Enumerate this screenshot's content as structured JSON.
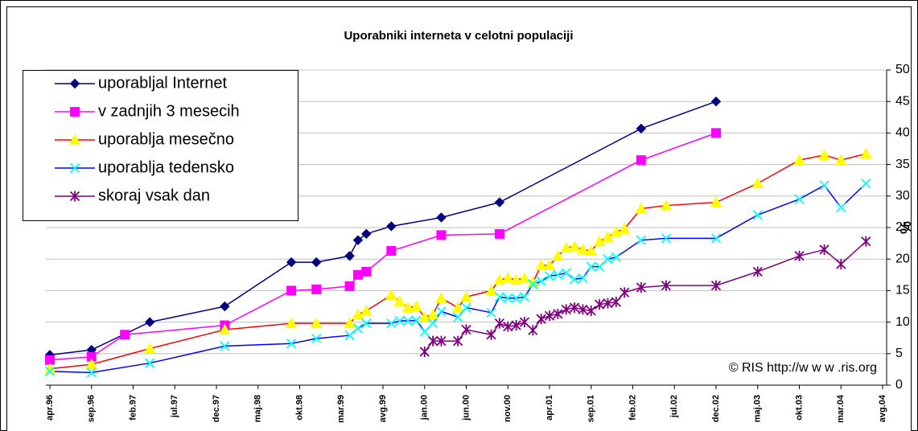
{
  "chart_data": {
    "type": "line",
    "title": "Uporabniki interneta v celotni populaciji",
    "y_label": "%",
    "annotation": "© RIS http://w w w .ris.org",
    "xlim": [
      "1996-04",
      "2004-08"
    ],
    "xticks": [
      {
        "value": "1996-04",
        "label": "apr.96"
      },
      {
        "value": "1996-09",
        "label": "sep.96"
      },
      {
        "value": "1997-02",
        "label": "feb.97"
      },
      {
        "value": "1997-07",
        "label": "jul.97"
      },
      {
        "value": "1997-12",
        "label": "dec.97"
      },
      {
        "value": "1998-05",
        "label": "maj.98"
      },
      {
        "value": "1998-10",
        "label": "okt.98"
      },
      {
        "value": "1999-03",
        "label": "mar.99"
      },
      {
        "value": "1999-08",
        "label": "avg.99"
      },
      {
        "value": "2000-01",
        "label": "jan.00"
      },
      {
        "value": "2000-06",
        "label": "jun.00"
      },
      {
        "value": "2000-11",
        "label": "nov.00"
      },
      {
        "value": "2001-04",
        "label": "apr.01"
      },
      {
        "value": "2001-09",
        "label": "sep.01"
      },
      {
        "value": "2002-02",
        "label": "feb.02"
      },
      {
        "value": "2002-07",
        "label": "jul.02"
      },
      {
        "value": "2002-12",
        "label": "dec.02"
      },
      {
        "value": "2003-05",
        "label": "maj.03"
      },
      {
        "value": "2003-10",
        "label": "okt.03"
      },
      {
        "value": "2004-03",
        "label": "mar.04"
      },
      {
        "value": "2004-08",
        "label": "avg.04"
      }
    ],
    "ylim": [
      0,
      50
    ],
    "yticks": [
      0,
      5,
      10,
      15,
      20,
      25,
      30,
      35,
      40,
      45,
      50
    ],
    "y_axis_side": "right",
    "grid": true,
    "legend": "top-left",
    "series": [
      {
        "name": "uporabljal Internet",
        "color": "#000080",
        "marker": "diamond",
        "marker_color": "#000080",
        "x": [
          "1996-04",
          "1996-09",
          "1997-04",
          "1998-01",
          "1998-09",
          "1998-12",
          "1999-04",
          "1999-05",
          "1999-06",
          "1999-09",
          "2000-03",
          "2000-10",
          "2002-03",
          "2002-12"
        ],
        "values": [
          4.8,
          5.6,
          10.0,
          12.5,
          19.5,
          19.5,
          20.5,
          23.0,
          24.0,
          25.2,
          26.6,
          29.0,
          40.7,
          45.0
        ]
      },
      {
        "name": "v zadnjih 3 mesecih",
        "color": "#ff00ff",
        "marker": "square",
        "marker_color": "#ff00ff",
        "x": [
          "1996-04",
          "1996-09",
          "1997-01",
          "1998-01",
          "1998-09",
          "1998-12",
          "1999-04",
          "1999-05",
          "1999-06",
          "1999-09",
          "2000-03",
          "2000-10",
          "2002-03",
          "2002-12"
        ],
        "values": [
          4.0,
          4.5,
          8.0,
          9.5,
          15.0,
          15.2,
          15.7,
          17.5,
          18.0,
          21.3,
          23.8,
          24.0,
          35.7,
          40.0
        ]
      },
      {
        "name": "uporablja mesečno",
        "color": "#ff0000",
        "marker": "triangle",
        "marker_color": "#ffff00",
        "x": [
          "1996-04",
          "1996-09",
          "1997-04",
          "1998-01",
          "1998-09",
          "1998-12",
          "1999-04",
          "1999-05",
          "1999-06",
          "1999-09",
          "1999-10",
          "1999-11",
          "1999-12",
          "2000-01",
          "2000-02",
          "2000-03",
          "2000-05",
          "2000-06",
          "2000-09",
          "2000-10",
          "2000-11",
          "2000-12",
          "2001-01",
          "2001-02",
          "2001-03",
          "2001-04",
          "2001-05",
          "2001-06",
          "2001-07",
          "2001-08",
          "2001-09",
          "2001-10",
          "2001-11",
          "2001-12",
          "2002-01",
          "2002-03",
          "2002-06",
          "2002-12",
          "2003-05",
          "2003-10",
          "2004-01",
          "2004-03",
          "2004-06"
        ],
        "values": [
          2.6,
          3.3,
          5.8,
          8.8,
          9.8,
          9.8,
          9.8,
          11.2,
          11.8,
          14.3,
          13.3,
          12.3,
          12.5,
          10.8,
          11.2,
          13.8,
          12.3,
          14.0,
          15.0,
          16.7,
          17.0,
          16.7,
          17.0,
          16.3,
          19.0,
          19.0,
          20.5,
          21.8,
          22.0,
          21.5,
          21.3,
          22.8,
          23.5,
          24.3,
          24.8,
          28.0,
          28.5,
          29.0,
          32.0,
          35.7,
          36.5,
          35.7,
          36.7
        ]
      },
      {
        "name": "uporablja tedensko",
        "color": "#0000ff",
        "marker": "x",
        "marker_color": "#00ffff",
        "x": [
          "1996-04",
          "1996-09",
          "1997-04",
          "1998-01",
          "1998-09",
          "1998-12",
          "1999-04",
          "1999-05",
          "1999-06",
          "1999-09",
          "1999-10",
          "1999-11",
          "1999-12",
          "2000-01",
          "2000-02",
          "2000-03",
          "2000-05",
          "2000-06",
          "2000-09",
          "2000-10",
          "2000-11",
          "2000-12",
          "2001-01",
          "2001-02",
          "2001-03",
          "2001-04",
          "2001-05",
          "2001-06",
          "2001-07",
          "2001-08",
          "2001-09",
          "2001-10",
          "2001-11",
          "2001-12",
          "2002-03",
          "2002-06",
          "2002-12",
          "2003-05",
          "2003-10",
          "2004-01",
          "2004-03",
          "2004-06"
        ],
        "values": [
          2.2,
          2.0,
          3.5,
          6.2,
          6.6,
          7.4,
          7.9,
          9.0,
          9.8,
          9.8,
          10.2,
          10.2,
          10.3,
          8.5,
          9.8,
          11.7,
          10.8,
          12.3,
          11.5,
          14.0,
          13.8,
          13.8,
          14.0,
          16.0,
          16.5,
          17.3,
          17.5,
          17.8,
          16.8,
          17.0,
          18.8,
          18.8,
          20.0,
          20.3,
          23.0,
          23.3,
          23.3,
          27.0,
          29.5,
          31.7,
          28.2,
          32.0
        ]
      },
      {
        "name": "skoraj vsak dan",
        "color": "#800080",
        "marker": "asterisk",
        "marker_color": "#800080",
        "x": [
          "2000-01",
          "2000-02",
          "2000-03",
          "2000-05",
          "2000-06",
          "2000-09",
          "2000-10",
          "2000-11",
          "2000-12",
          "2001-01",
          "2001-02",
          "2001-03",
          "2001-04",
          "2001-05",
          "2001-06",
          "2001-07",
          "2001-08",
          "2001-09",
          "2001-10",
          "2001-11",
          "2001-12",
          "2002-01",
          "2002-03",
          "2002-06",
          "2002-12",
          "2003-05",
          "2003-10",
          "2004-01",
          "2004-03",
          "2004-06"
        ],
        "values": [
          5.3,
          7.0,
          7.0,
          7.0,
          8.8,
          8.0,
          9.8,
          9.3,
          9.5,
          10.0,
          8.7,
          10.5,
          11.0,
          11.3,
          12.0,
          12.3,
          12.0,
          11.8,
          12.8,
          13.0,
          13.2,
          14.7,
          15.5,
          15.8,
          15.8,
          18.0,
          20.5,
          21.5,
          19.2,
          22.8
        ]
      }
    ]
  }
}
